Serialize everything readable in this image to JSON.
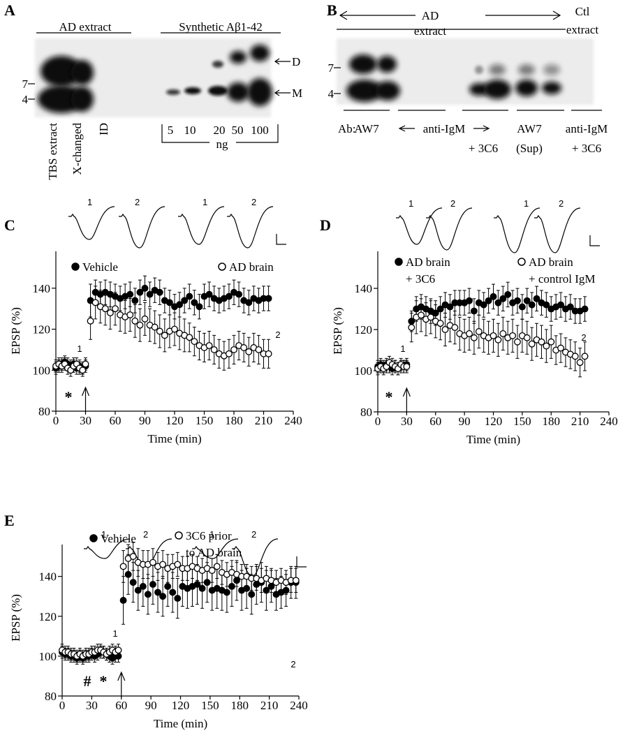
{
  "panel_a": {
    "label": "A",
    "headings": [
      "AD extract",
      "Synthetic Aβ1-42"
    ],
    "markers": [
      "7",
      "4"
    ],
    "bands": [
      "D",
      "M"
    ],
    "lanes": [
      "TBS extract",
      "X-changed",
      "ID"
    ],
    "amounts": [
      "5",
      "10",
      "20",
      "50",
      "100"
    ],
    "unit": "ng"
  },
  "panel_b": {
    "label": "B",
    "heading": [
      "AD",
      "extract"
    ],
    "control": [
      "Ctl",
      "extract"
    ],
    "markers": [
      "7",
      "4"
    ],
    "ab": "Ab:",
    "groups": [
      "AW7",
      "anti-IgM",
      "+ 3C6",
      "AW7",
      "(Sup)",
      "anti-IgM",
      "+ 3C6"
    ]
  },
  "chart_data": [
    {
      "type": "scatter",
      "panel": "C",
      "trace_labels": [
        "1",
        "2",
        "1",
        "2"
      ],
      "annotations": [
        "1",
        "2",
        "*"
      ],
      "x_label": "Time (min)",
      "y_label": "EPSP (%)",
      "x": [
        0,
        3,
        6,
        9,
        12,
        15,
        18,
        21,
        24,
        27,
        30,
        35,
        40,
        45,
        50,
        55,
        60,
        65,
        70,
        75,
        80,
        85,
        90,
        95,
        100,
        105,
        110,
        115,
        120,
        125,
        130,
        135,
        140,
        145,
        150,
        155,
        160,
        165,
        170,
        175,
        180,
        185,
        190,
        195,
        200,
        205,
        210,
        215
      ],
      "series": [
        {
          "name": "Vehicle",
          "color": "#000000",
          "marker": "filled",
          "values": [
            101,
            102,
            103,
            104,
            103,
            102,
            103,
            101,
            102,
            101,
            102,
            134,
            138,
            137,
            138,
            137,
            136,
            135,
            136,
            137,
            134,
            138,
            140,
            137,
            139,
            138,
            134,
            133,
            131,
            132,
            134,
            136,
            133,
            131,
            136,
            137,
            135,
            134,
            135,
            136,
            138,
            137,
            134,
            133,
            135,
            134,
            135,
            135
          ],
          "errors": [
            3,
            3,
            3,
            3,
            3,
            3,
            3,
            3,
            3,
            3,
            3,
            8,
            6,
            6,
            6,
            6,
            6,
            6,
            6,
            6,
            6,
            6,
            6,
            6,
            6,
            6,
            6,
            6,
            6,
            6,
            6,
            6,
            6,
            6,
            6,
            6,
            6,
            6,
            6,
            6,
            6,
            6,
            6,
            6,
            6,
            6,
            6,
            6
          ]
        },
        {
          "name": "AD brain",
          "color": "#000000",
          "marker": "open",
          "values": [
            102,
            103,
            102,
            103,
            101,
            100,
            102,
            103,
            101,
            100,
            103,
            124,
            133,
            131,
            130,
            128,
            130,
            127,
            126,
            127,
            124,
            122,
            125,
            122,
            121,
            119,
            117,
            119,
            120,
            118,
            117,
            116,
            114,
            112,
            111,
            112,
            110,
            108,
            107,
            108,
            110,
            112,
            111,
            109,
            111,
            110,
            108,
            108
          ],
          "errors": [
            3,
            3,
            3,
            3,
            3,
            3,
            3,
            3,
            3,
            3,
            3,
            9,
            8,
            8,
            8,
            8,
            8,
            8,
            8,
            8,
            8,
            8,
            8,
            8,
            8,
            8,
            8,
            8,
            8,
            8,
            8,
            7,
            7,
            7,
            7,
            7,
            7,
            7,
            7,
            7,
            7,
            7,
            7,
            7,
            7,
            7,
            7,
            7
          ]
        }
      ],
      "xlim": [
        0,
        240
      ],
      "ylim": [
        80,
        158
      ],
      "xticks": [
        0,
        30,
        60,
        90,
        120,
        150,
        180,
        210,
        240
      ],
      "yticks": [
        80,
        100,
        120,
        140
      ]
    },
    {
      "type": "scatter",
      "panel": "D",
      "trace_labels": [
        "1",
        "2",
        "1",
        "2"
      ],
      "annotations": [
        "1",
        "2",
        "*"
      ],
      "x_label": "Time (min)",
      "y_label": "EPSP (%)",
      "x": [
        0,
        3,
        6,
        9,
        12,
        15,
        18,
        21,
        24,
        27,
        30,
        35,
        40,
        45,
        50,
        55,
        60,
        65,
        70,
        75,
        80,
        85,
        90,
        95,
        100,
        105,
        110,
        115,
        120,
        125,
        130,
        135,
        140,
        145,
        150,
        155,
        160,
        165,
        170,
        175,
        180,
        185,
        190,
        195,
        200,
        205,
        210,
        215
      ],
      "series": [
        {
          "name": "AD brain\n+ 3C6",
          "color": "#000000",
          "marker": "filled",
          "values": [
            102,
            103,
            102,
            103,
            102,
            101,
            102,
            101,
            102,
            102,
            103,
            124,
            130,
            131,
            130,
            129,
            128,
            130,
            132,
            131,
            133,
            133,
            133,
            134,
            129,
            133,
            132,
            134,
            136,
            133,
            135,
            137,
            133,
            134,
            131,
            134,
            132,
            135,
            133,
            132,
            130,
            131,
            132,
            130,
            131,
            129,
            129,
            130
          ],
          "errors": [
            3,
            3,
            3,
            3,
            3,
            3,
            3,
            3,
            3,
            3,
            3,
            5,
            6,
            6,
            6,
            6,
            6,
            6,
            6,
            6,
            6,
            6,
            6,
            6,
            6,
            6,
            6,
            6,
            6,
            6,
            6,
            6,
            6,
            6,
            6,
            6,
            6,
            6,
            6,
            6,
            6,
            6,
            6,
            6,
            6,
            6,
            6,
            6
          ]
        },
        {
          "name": "AD brain\n+ control IgM",
          "color": "#000000",
          "marker": "open",
          "values": [
            101,
            102,
            101,
            102,
            104,
            103,
            102,
            101,
            103,
            102,
            102,
            121,
            126,
            127,
            125,
            126,
            124,
            123,
            120,
            122,
            121,
            118,
            117,
            118,
            116,
            119,
            117,
            116,
            117,
            115,
            118,
            116,
            117,
            114,
            117,
            116,
            113,
            115,
            114,
            112,
            114,
            110,
            111,
            109,
            108,
            107,
            104,
            107
          ],
          "errors": [
            3,
            3,
            3,
            3,
            3,
            3,
            3,
            3,
            3,
            3,
            3,
            7,
            8,
            8,
            8,
            8,
            8,
            8,
            8,
            8,
            8,
            8,
            8,
            8,
            8,
            8,
            8,
            8,
            8,
            8,
            8,
            8,
            8,
            8,
            8,
            8,
            8,
            8,
            8,
            8,
            8,
            7,
            7,
            7,
            7,
            7,
            7,
            7
          ]
        }
      ],
      "xlim": [
        0,
        240
      ],
      "ylim": [
        80,
        158
      ],
      "xticks": [
        0,
        30,
        60,
        90,
        120,
        150,
        180,
        210,
        240
      ],
      "yticks": [
        80,
        100,
        120,
        140
      ]
    },
    {
      "type": "scatter",
      "panel": "E",
      "trace_labels": [
        "1",
        "2",
        "1",
        "2"
      ],
      "annotations": [
        "1",
        "2",
        "#",
        "*"
      ],
      "x_label": "Time (min)",
      "y_label": "EPSP (%)",
      "x": [
        0,
        3,
        6,
        9,
        12,
        15,
        18,
        21,
        24,
        27,
        30,
        33,
        36,
        39,
        42,
        45,
        48,
        51,
        54,
        57,
        62,
        67,
        72,
        77,
        82,
        87,
        92,
        97,
        102,
        107,
        112,
        117,
        122,
        127,
        132,
        137,
        142,
        147,
        152,
        157,
        162,
        167,
        172,
        177,
        182,
        187,
        192,
        197,
        202,
        207,
        212,
        217,
        222,
        227,
        232,
        237
      ],
      "series": [
        {
          "name": "Vehicle",
          "color": "#000000",
          "marker": "filled",
          "values": [
            102,
            101,
            101,
            100,
            100,
            99,
            100,
            99,
            100,
            100,
            101,
            100,
            101,
            102,
            102,
            101,
            100,
            99,
            100,
            100,
            128,
            141,
            137,
            133,
            135,
            131,
            136,
            132,
            130,
            135,
            132,
            129,
            135,
            134,
            135,
            136,
            134,
            137,
            133,
            134,
            133,
            132,
            135,
            138,
            133,
            134,
            131,
            136,
            137,
            133,
            135,
            131,
            132,
            133,
            137,
            137
          ],
          "errors": [
            3,
            3,
            3,
            3,
            3,
            3,
            3,
            3,
            3,
            3,
            3,
            3,
            3,
            3,
            3,
            3,
            3,
            3,
            3,
            3,
            12,
            10,
            10,
            10,
            10,
            10,
            10,
            10,
            10,
            10,
            10,
            10,
            10,
            10,
            10,
            10,
            10,
            10,
            10,
            10,
            10,
            10,
            10,
            10,
            10,
            10,
            10,
            10,
            10,
            10,
            8,
            8,
            8,
            8,
            8,
            8
          ]
        },
        {
          "name": "3C6 prior\nto AD brain",
          "color": "#000000",
          "marker": "open",
          "values": [
            103,
            102,
            102,
            101,
            101,
            100,
            101,
            100,
            101,
            101,
            102,
            102,
            103,
            103,
            102,
            101,
            102,
            103,
            102,
            103,
            145,
            149,
            150,
            147,
            146,
            146,
            147,
            145,
            146,
            144,
            145,
            146,
            144,
            144,
            145,
            144,
            143,
            144,
            143,
            145,
            142,
            141,
            142,
            141,
            140,
            140,
            139,
            139,
            138,
            139,
            138,
            137,
            138,
            137,
            138,
            138
          ],
          "errors": [
            3,
            3,
            3,
            3,
            3,
            3,
            3,
            3,
            3,
            3,
            3,
            3,
            3,
            3,
            3,
            3,
            3,
            3,
            3,
            3,
            8,
            7,
            7,
            7,
            7,
            7,
            7,
            7,
            7,
            7,
            6,
            6,
            6,
            6,
            6,
            6,
            6,
            6,
            6,
            6,
            6,
            6,
            6,
            6,
            6,
            6,
            6,
            6,
            6,
            6,
            6,
            6,
            6,
            6,
            6,
            6
          ]
        }
      ],
      "xlim": [
        0,
        240
      ],
      "ylim": [
        80,
        156
      ],
      "xticks": [
        0,
        30,
        60,
        90,
        120,
        150,
        180,
        210,
        240
      ],
      "yticks": [
        80,
        100,
        120,
        140
      ]
    }
  ]
}
